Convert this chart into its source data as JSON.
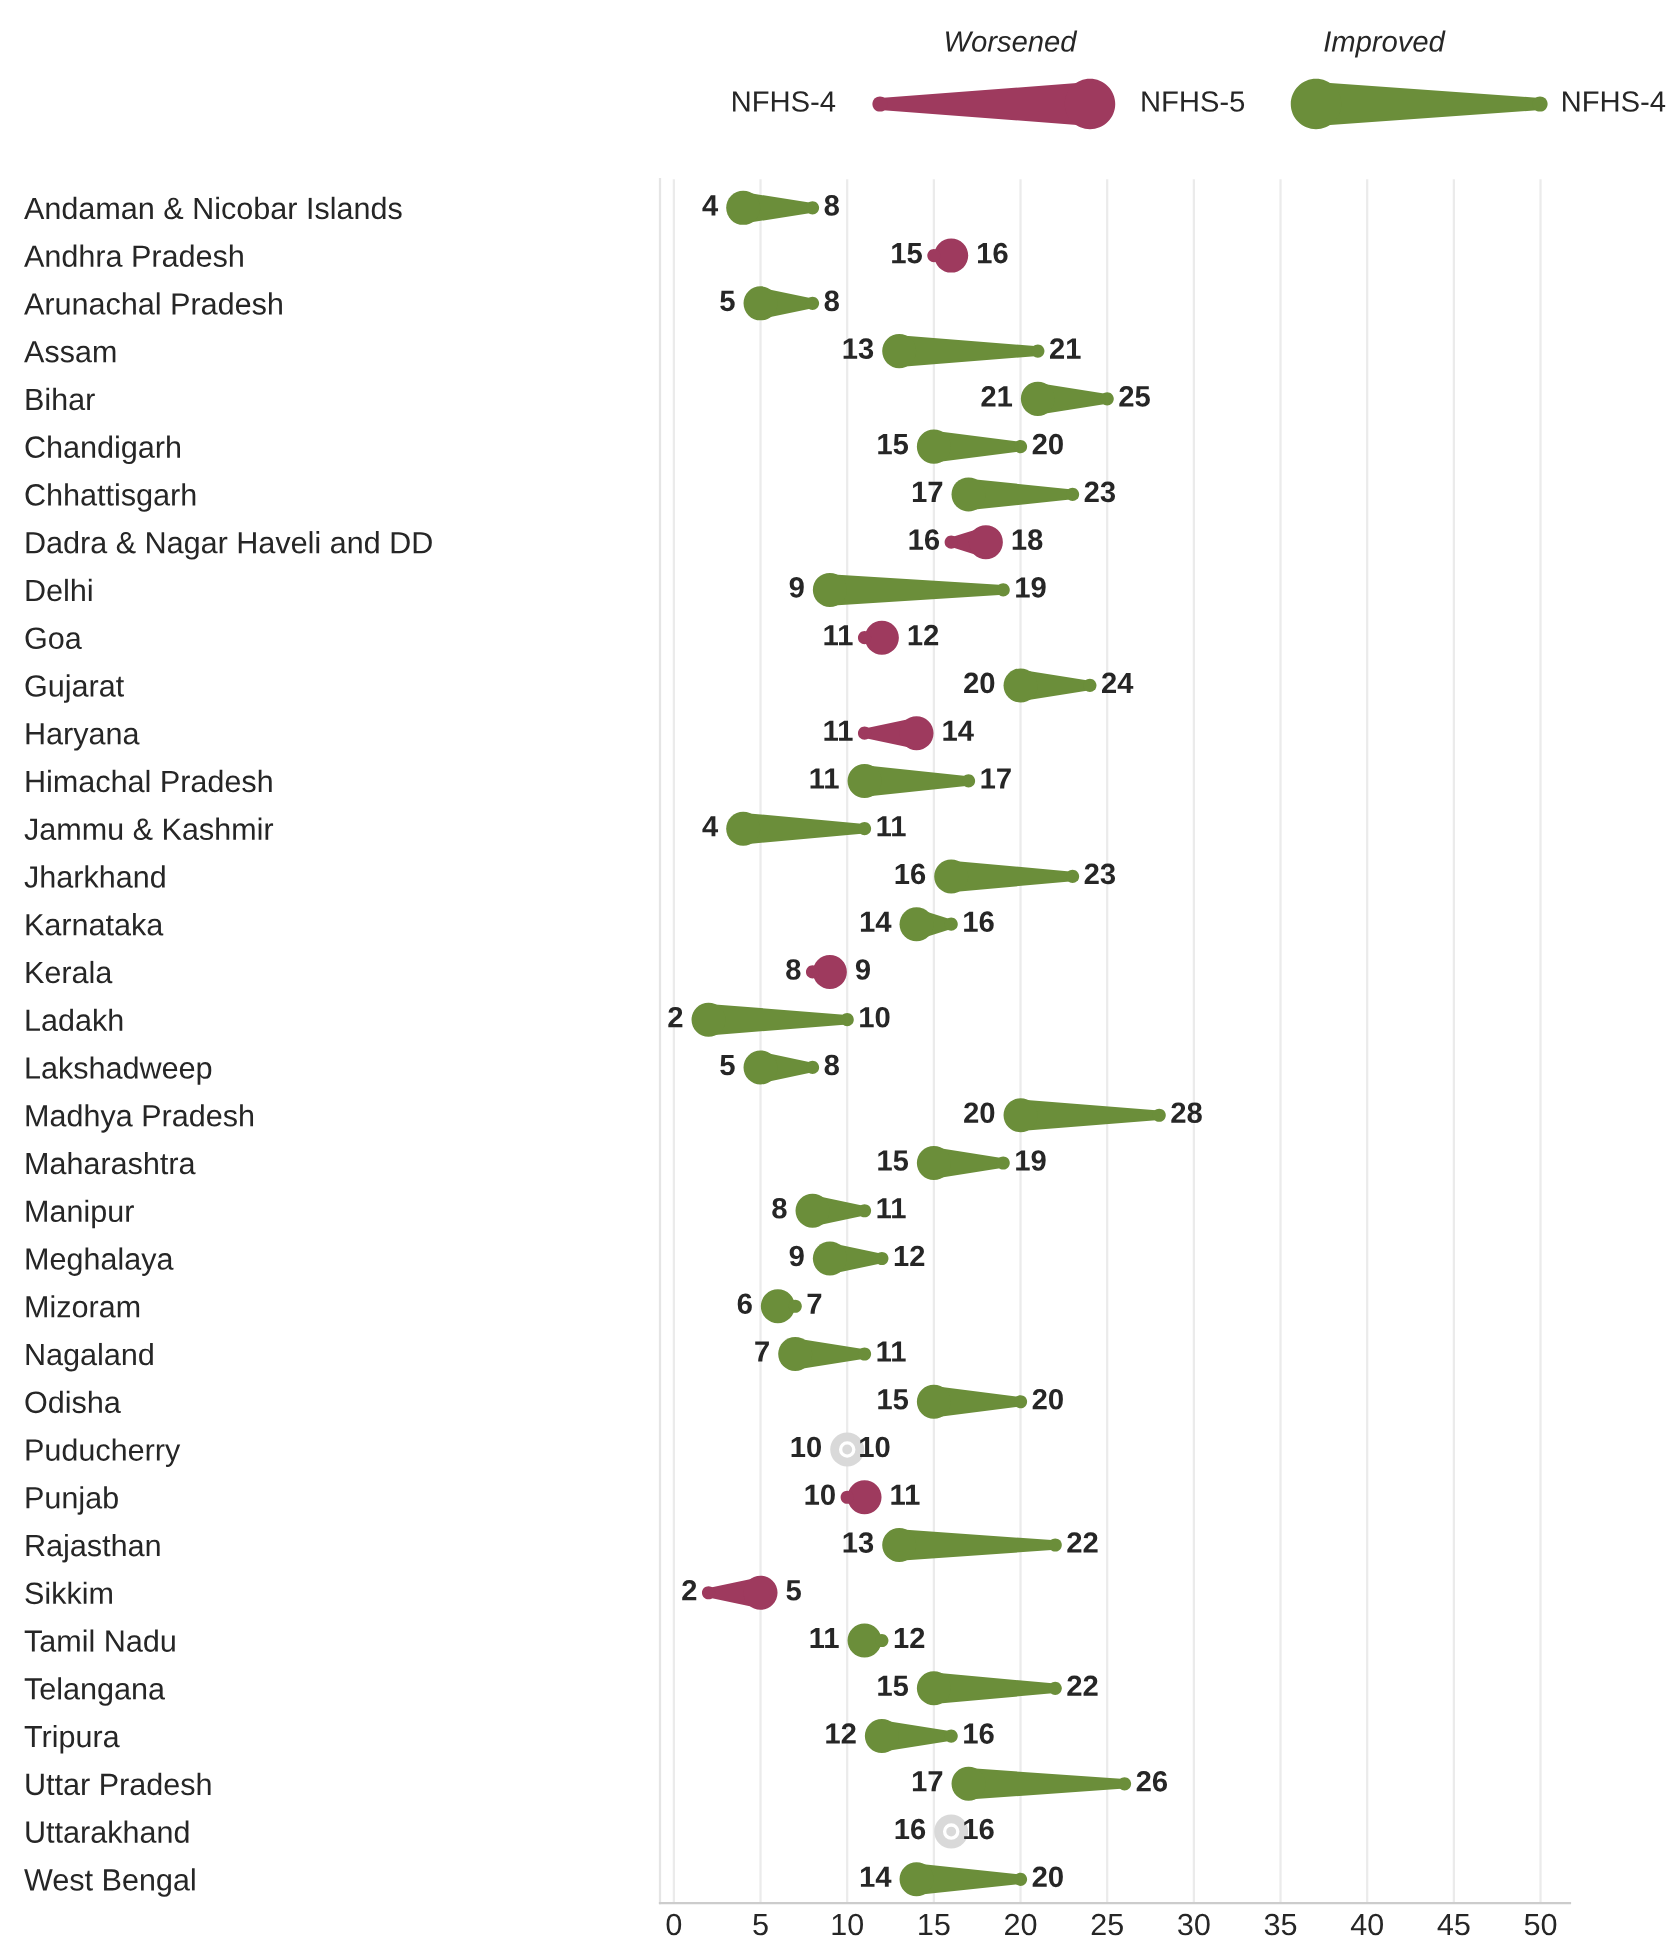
{
  "chart_data": {
    "type": "scatter",
    "categories": [
      "Andaman & Nicobar Islands",
      "Andhra Pradesh",
      "Arunachal Pradesh",
      "Assam",
      "Bihar",
      "Chandigarh",
      "Chhattisgarh",
      "Dadra & Nagar Haveli and DD",
      "Delhi",
      "Goa",
      "Gujarat",
      "Haryana",
      "Himachal Pradesh",
      "Jammu & Kashmir",
      "Jharkhand",
      "Karnataka",
      "Kerala",
      "Ladakh",
      "Lakshadweep",
      "Madhya Pradesh",
      "Maharashtra",
      "Manipur",
      "Meghalaya",
      "Mizoram",
      "Nagaland",
      "Odisha",
      "Puducherry",
      "Punjab",
      "Rajasthan",
      "Sikkim",
      "Tamil Nadu",
      "Telangana",
      "Tripura",
      "Uttar Pradesh",
      "Uttarakhand",
      "West Bengal"
    ],
    "series": [
      {
        "name": "NFHS-4",
        "values": [
          8,
          15,
          8,
          21,
          25,
          20,
          23,
          16,
          19,
          11,
          24,
          11,
          17,
          11,
          23,
          16,
          8,
          10,
          8,
          28,
          19,
          11,
          12,
          7,
          11,
          20,
          10,
          10,
          22,
          2,
          12,
          22,
          16,
          26,
          16,
          20
        ],
        "sizes": [
          0.15,
          0.15,
          0.15,
          0.15,
          0.15,
          0.15,
          0.15,
          0.15,
          0.15,
          0.15,
          0.15,
          0.15,
          0.15,
          0.15,
          0.15,
          0.15,
          0.15,
          0.15,
          0.15,
          0.15,
          0.15,
          0.15,
          0.15,
          0.15,
          0.15,
          0.15,
          0.15,
          0.15,
          0.15,
          0.15,
          0.15,
          0.15,
          0.15,
          0.15,
          0.15,
          0.15
        ],
        "colors": [
          "#6b8e3a",
          "#9e3a5e",
          "#6b8e3a",
          "#6b8e3a",
          "#6b8e3a",
          "#6b8e3a",
          "#6b8e3a",
          "#9e3a5e",
          "#6b8e3a",
          "#9e3a5e",
          "#6b8e3a",
          "#9e3a5e",
          "#6b8e3a",
          "#6b8e3a",
          "#6b8e3a",
          "#6b8e3a",
          "#9e3a5e",
          "#6b8e3a",
          "#6b8e3a",
          "#6b8e3a",
          "#6b8e3a",
          "#6b8e3a",
          "#6b8e3a",
          "#6b8e3a",
          "#6b8e3a",
          "#6b8e3a",
          "#d9d9d9",
          "#9e3a5e",
          "#6b8e3a",
          "#9e3a5e",
          "#6b8e3a",
          "#6b8e3a",
          "#6b8e3a",
          "#6b8e3a",
          "#d9d9d9",
          "#6b8e3a"
        ]
      },
      {
        "name": "NFHS-5",
        "values": [
          4,
          16,
          5,
          13,
          21,
          15,
          17,
          18,
          9,
          12,
          20,
          14,
          11,
          4,
          16,
          14,
          9,
          2,
          5,
          20,
          15,
          8,
          9,
          6,
          7,
          15,
          10,
          11,
          13,
          5,
          11,
          15,
          12,
          17,
          16,
          14
        ],
        "sizes": [
          1,
          1,
          1,
          1,
          1,
          1,
          1,
          1,
          1,
          1,
          1,
          1,
          1,
          1,
          1,
          1,
          1,
          1,
          1,
          1,
          1,
          1,
          1,
          1,
          1,
          1,
          1,
          1,
          1,
          1,
          1,
          1,
          1,
          1,
          1,
          1
        ],
        "colors": [
          "#6b8e3a",
          "#9e3a5e",
          "#6b8e3a",
          "#6b8e3a",
          "#6b8e3a",
          "#6b8e3a",
          "#6b8e3a",
          "#9e3a5e",
          "#6b8e3a",
          "#9e3a5e",
          "#6b8e3a",
          "#9e3a5e",
          "#6b8e3a",
          "#6b8e3a",
          "#6b8e3a",
          "#6b8e3a",
          "#9e3a5e",
          "#6b8e3a",
          "#6b8e3a",
          "#6b8e3a",
          "#6b8e3a",
          "#6b8e3a",
          "#6b8e3a",
          "#6b8e3a",
          "#6b8e3a",
          "#6b8e3a",
          "#d9d9d9",
          "#9e3a5e",
          "#6b8e3a",
          "#9e3a5e",
          "#6b8e3a",
          "#6b8e3a",
          "#6b8e3a",
          "#6b8e3a",
          "#d9d9d9",
          "#6b8e3a"
        ]
      }
    ],
    "orientation": "horizontal",
    "annotations": [
      "Worsened",
      "Improved"
    ],
    "xlim": [
      -0.8,
      51.7
    ],
    "xticks": [
      0,
      5,
      10,
      15,
      20,
      25,
      30,
      35,
      40,
      45,
      50
    ],
    "grid": "x",
    "legend": "top",
    "data_labels": true
  }
}
